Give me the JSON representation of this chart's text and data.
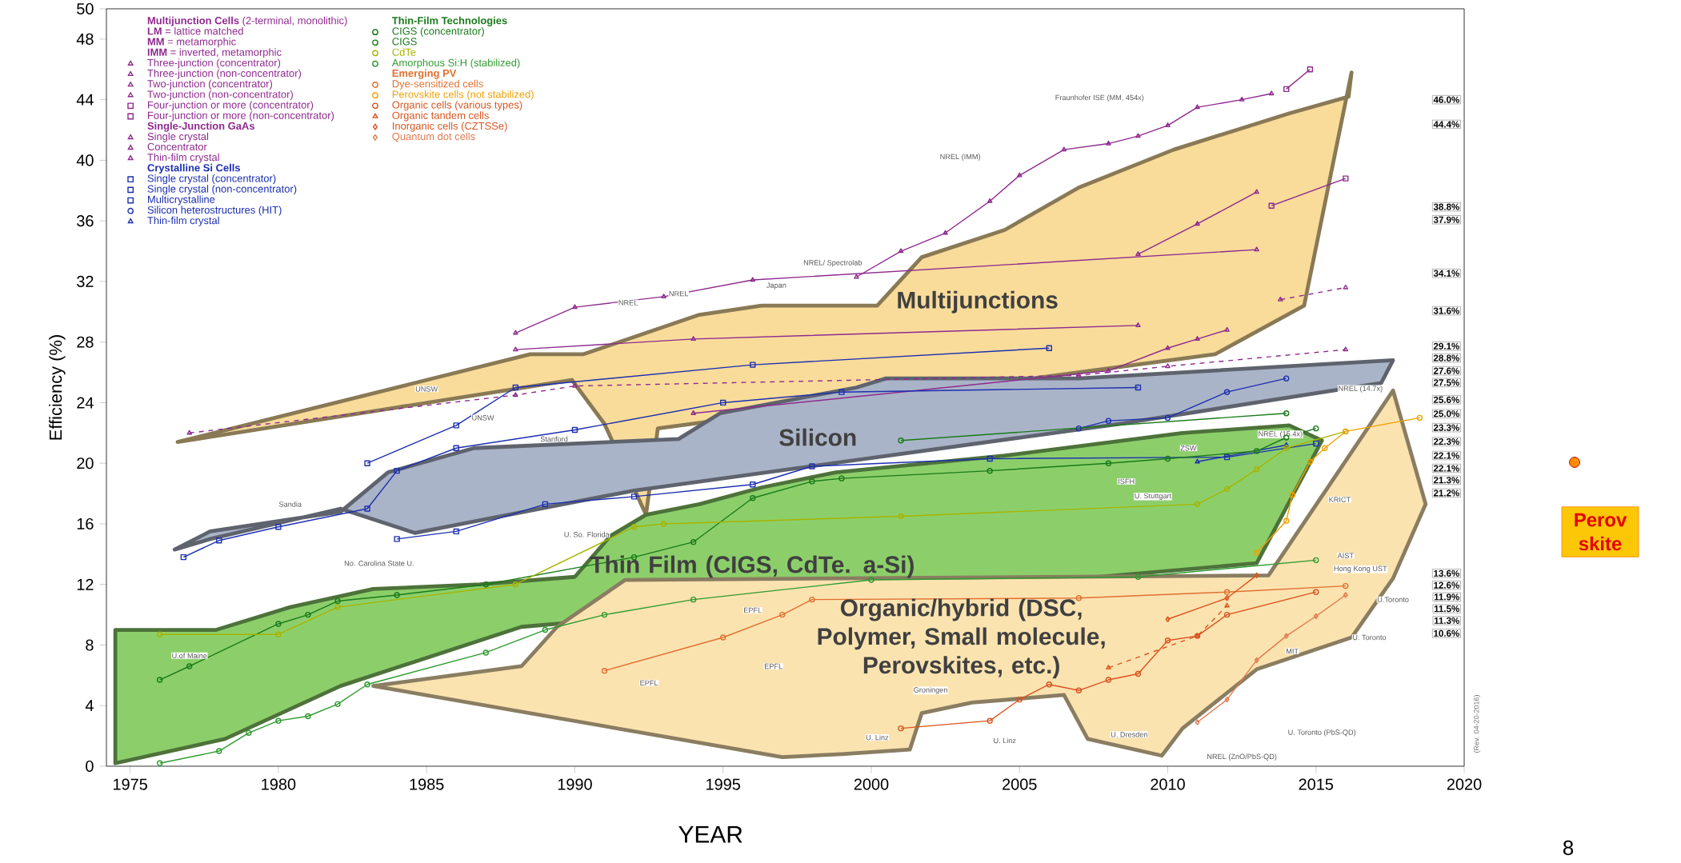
{
  "chart_data": {
    "type": "line",
    "xlabel": "YEAR",
    "ylabel": "Efficiency (%)",
    "xlim": [
      1974.2,
      2020
    ],
    "ylim": [
      0,
      50
    ],
    "xticks": [
      1975,
      1980,
      1985,
      1990,
      1995,
      2000,
      2005,
      2010,
      2015,
      2020
    ],
    "yticks": [
      0,
      4,
      8,
      12,
      16,
      20,
      24,
      28,
      32,
      36,
      40,
      44,
      48,
      50
    ],
    "legend": "top left",
    "series": [
      {
        "name": "Three-junction (concentrator)",
        "color": "#8e2a8e",
        "marker": "triangle",
        "x": [
          1999.5,
          2001,
          2002.5,
          2004,
          2005,
          2006.5,
          2008,
          2009,
          2010,
          2011,
          2012.5,
          2013.5
        ],
        "values": [
          32.3,
          34.0,
          35.2,
          37.3,
          39.0,
          40.7,
          41.1,
          41.6,
          42.3,
          43.5,
          44.0,
          44.4
        ]
      },
      {
        "name": "Three-junction (non-concentrator)",
        "color": "#8e2a8e",
        "marker": "triangle",
        "x": [
          2009,
          2011,
          2013
        ],
        "values": [
          33.8,
          35.8,
          37.9
        ]
      },
      {
        "name": "Two-junction (concentrator)",
        "color": "#8e2a8e",
        "marker": "triangle",
        "x": [
          1988,
          1990,
          1993,
          1996,
          2013
        ],
        "values": [
          28.6,
          30.3,
          31.0,
          32.1,
          34.1
        ]
      },
      {
        "name": "Two-junction (non-concentrator)",
        "color": "#8e2a8e",
        "marker": "triangle",
        "line_style": "dashed",
        "x": [
          2013.8,
          2016
        ],
        "values": [
          30.8,
          31.6
        ]
      },
      {
        "name": "Four-junction or more (concentrator)",
        "color": "#8e2a8e",
        "marker": "square",
        "x": [
          2014,
          2014.8
        ],
        "values": [
          44.7,
          46.0
        ]
      },
      {
        "name": "Four-junction or more (non-concentrator)",
        "color": "#8e2a8e",
        "marker": "square",
        "x": [
          2013.5,
          2016
        ],
        "values": [
          37.0,
          38.8
        ]
      },
      {
        "name": "Single crystal",
        "color": "#8e2a8e",
        "marker": "triangle",
        "line_style": "dashed",
        "x": [
          1977,
          1988,
          1990,
          2007,
          2010,
          2016
        ],
        "values": [
          22.0,
          24.5,
          25.1,
          25.8,
          26.4,
          27.5
        ]
      },
      {
        "name": "Concentrator",
        "color": "#8e2a8e",
        "marker": "triangle",
        "x": [
          1988,
          1994,
          2009
        ],
        "values": [
          27.5,
          28.2,
          29.1
        ]
      },
      {
        "name": "Thin-film crystal",
        "color": "#8e2a8e",
        "marker": "triangle",
        "x": [
          1994,
          2008,
          2010,
          2011,
          2012
        ],
        "values": [
          23.3,
          26.1,
          27.6,
          28.2,
          28.8
        ]
      },
      {
        "name": "Single crystal (concentrator)",
        "color": "#1c2fb0",
        "marker": "square",
        "x": [
          1983,
          1986,
          1988,
          1996,
          2006
        ],
        "values": [
          20.0,
          22.5,
          25.0,
          26.5,
          27.6
        ]
      },
      {
        "name": "Single crystal (non-concentrator)",
        "color": "#1c2fb0",
        "marker": "square",
        "x": [
          1976.8,
          1978,
          1980,
          1983,
          1984,
          1986,
          1990,
          1995,
          1999,
          2009
        ],
        "values": [
          13.8,
          14.9,
          15.8,
          17.0,
          19.5,
          21.0,
          22.2,
          24.0,
          24.7,
          25.0
        ]
      },
      {
        "name": "Multicrystalline",
        "color": "#1c2fb0",
        "marker": "square",
        "x": [
          1984,
          1986,
          1989,
          1992,
          1996,
          1998,
          2004,
          2012,
          2015
        ],
        "values": [
          15.0,
          15.5,
          17.3,
          17.8,
          18.6,
          19.8,
          20.3,
          20.4,
          21.3
        ]
      },
      {
        "name": "Silicon heterostructures (HIT)",
        "color": "#1c2fb0",
        "marker": "circle",
        "x": [
          2007,
          2008,
          2010,
          2012,
          2014
        ],
        "values": [
          22.3,
          22.8,
          23.0,
          24.7,
          25.6
        ]
      },
      {
        "name": "Thin-film crystal",
        "color": "#1c2fb0",
        "marker": "triangle",
        "x": [
          2011,
          2014
        ],
        "values": [
          20.1,
          21.2
        ]
      },
      {
        "name": "CIGS (concentrator)",
        "color": "#1a7a1a",
        "marker": "circle",
        "x": [
          2001,
          2014
        ],
        "values": [
          21.5,
          23.3
        ]
      },
      {
        "name": "CIGS",
        "color": "#1a7a1a",
        "marker": "circle",
        "x": [
          1976,
          1977,
          1980,
          1981,
          1982,
          1984,
          1987,
          1992,
          1994,
          1996,
          1998,
          1999,
          2004,
          2008,
          2010,
          2013,
          2014,
          2015
        ],
        "values": [
          5.7,
          6.6,
          9.4,
          10.0,
          10.9,
          11.3,
          12.0,
          13.8,
          14.8,
          17.7,
          18.8,
          19.0,
          19.5,
          20.0,
          20.3,
          20.8,
          21.7,
          22.3
        ]
      },
      {
        "name": "CdTe",
        "color": "#a8b400",
        "marker": "circle",
        "x": [
          1976,
          1980,
          1982,
          1988,
          1992,
          1993,
          2001,
          2011,
          2012,
          2013,
          2014,
          2016
        ],
        "values": [
          8.7,
          8.7,
          10.5,
          12.0,
          15.8,
          16.0,
          16.5,
          17.3,
          18.3,
          19.6,
          21.0,
          22.1
        ]
      },
      {
        "name": "Amorphous Si:H (stabilized)",
        "color": "#2f9a2f",
        "marker": "circle",
        "x": [
          1976,
          1978,
          1979,
          1980,
          1981,
          1982,
          1983,
          1987,
          1989,
          1991,
          1994,
          2000,
          2009,
          2015
        ],
        "values": [
          0.2,
          1.0,
          2.2,
          3.0,
          3.3,
          4.1,
          5.4,
          7.5,
          9.0,
          10.0,
          11.0,
          12.3,
          12.5,
          13.6
        ]
      },
      {
        "name": "Dye-sensitized cells",
        "color": "#e07030",
        "marker": "circle",
        "x": [
          1991,
          1995,
          1997,
          1998,
          2007,
          2012,
          2016
        ],
        "values": [
          6.3,
          8.5,
          10.0,
          11.0,
          11.1,
          11.5,
          11.9
        ]
      },
      {
        "name": "Perovskite cells (not stabilized)",
        "color": "#f0a000",
        "marker": "circle",
        "x": [
          2013,
          2014,
          2014.2,
          2014.8,
          2015.3,
          2016,
          2018.5
        ],
        "values": [
          14.1,
          16.2,
          17.9,
          20.1,
          21.0,
          22.1,
          23.0
        ]
      },
      {
        "name": "Organic cells (various types)",
        "color": "#d9541e",
        "marker": "circle",
        "x": [
          2001,
          2004,
          2005,
          2006,
          2007,
          2008,
          2009,
          2010,
          2011,
          2012,
          2015
        ],
        "values": [
          2.5,
          3.0,
          4.4,
          5.4,
          5.0,
          5.7,
          6.1,
          8.3,
          8.6,
          10.0,
          11.5
        ]
      },
      {
        "name": "Organic tandem cells",
        "color": "#d9541e",
        "marker": "triangle",
        "line_style": "dashed",
        "x": [
          2008,
          2011,
          2012
        ],
        "values": [
          6.5,
          8.6,
          10.6
        ]
      },
      {
        "name": "Inorganic cells (CZTSSe)",
        "color": "#d9541e",
        "marker": "diamond",
        "x": [
          2010,
          2012,
          2013
        ],
        "values": [
          9.7,
          11.1,
          12.6
        ]
      },
      {
        "name": "Quantum dot cells",
        "color": "#e07a50",
        "marker": "diamond",
        "x": [
          2011,
          2012,
          2013,
          2014,
          2015,
          2016
        ],
        "values": [
          2.9,
          4.4,
          7.0,
          8.6,
          9.9,
          11.3
        ]
      },
      {
        "name": "Multijunctions",
        "type": "area",
        "color": "#f9dc9a",
        "x": [
          1976.6,
          1988.5,
          1990.3,
          1994.2,
          1996.3,
          2000.2,
          2001.7,
          2004.5,
          2007.0,
          2010.2,
          2014.1,
          2016.1,
          2016.2,
          2014.6,
          2011.6,
          2006.5,
          1996.3,
          1992.8,
          1992.4,
          1991.0,
          1989.9
        ],
        "values": [
          21.4,
          27.2,
          27.2,
          29.8,
          30.4,
          30.4,
          33.6,
          35.4,
          38.2,
          40.7,
          43.1,
          44.2,
          45.8,
          30.4,
          27.2,
          null,
          null,
          22.3,
          16.6,
          22.6,
          25.5
        ]
      },
      {
        "name": "Silicon",
        "type": "area",
        "color": "#aab4c8",
        "x": [
          1976.5,
          1977.7,
          1982.1,
          1983.7,
          1986.6,
          1993.5,
          1994.9,
          1999.5,
          2000.5,
          2007.0,
          2017.6,
          2017.2,
          2008.4,
          2006.6,
          1992.0,
          1984.6,
          1982.1,
          1977.7
        ],
        "values": [
          14.3,
          15.5,
          16.8,
          19.4,
          21.0,
          21.6,
          23.3,
          25.0,
          25.6,
          25.6,
          26.8,
          25.3,
          22.6,
          null,
          18.2,
          15.4,
          17.0,
          15.0
        ]
      },
      {
        "name": "Thin Film (CIGS, CdTe. a-Si)",
        "type": "area",
        "color": "#8ccf6a",
        "x": [
          1974.5,
          1977.9,
          1980.4,
          1983.2,
          1986.8,
          1990.0,
          1991.2,
          1992.4,
          1994.2,
          1996.3,
          1998.8,
          2004.5,
          2010.5,
          2014.1,
          2015.2,
          2013.0,
          2010.9,
          1991.4,
          1988.2,
          1982.1,
          1978.2,
          1974.5
        ],
        "values": [
          9.0,
          9.0,
          10.5,
          11.7,
          12.0,
          12.5,
          15.2,
          16.6,
          17.3,
          18.4,
          19.4,
          20.5,
          22.0,
          22.5,
          21.5,
          13.4,
          null,
          null,
          9.2,
          5.3,
          1.8,
          0.2
        ]
      },
      {
        "name": "Organic/hybrid (DSC, Polymer, Small molecule, Perovskites, etc.)",
        "type": "area",
        "color": "#fbe3b0",
        "x": [
          1983.2,
          1988.2,
          1989.4,
          1991.7,
          2013.4,
          2015.5,
          2017.6,
          2018.7,
          2017.6,
          2016.2,
          2013.0,
          2010.5,
          2009.8,
          2007.3,
          2006.5,
          2003.4,
          2001.7,
          2001.3,
          1999.0,
          1997.0
        ],
        "values": [
          5.3,
          6.6,
          9.2,
          12.3,
          12.6,
          18.7,
          24.8,
          17.3,
          12.4,
          8.5,
          6.4,
          2.5,
          0.7,
          1.8,
          4.7,
          4.2,
          3.5,
          1.1,
          0.8,
          0.6
        ]
      }
    ],
    "annotations": [
      "**Multijunction Cells** (2-terminal, monolithic)",
      "**LM** = lattice matched",
      "**MM** = metamorphic",
      "**IMM** = inverted, metamorphic",
      "Single-Junction GaAs",
      "Crystalline Si Cells",
      "Thin-Film Technologies",
      "Emerging PV",
      "46.0%",
      "44.4%",
      "38.8%",
      "37.9%",
      "34.1%",
      "31.6%",
      "29.1%",
      "28.8%",
      "27.6%",
      "27.5%",
      "25.6%",
      "25.0%",
      "23.3%",
      "22.3%",
      "22.1%",
      "22.1%",
      "21.3%",
      "21.2%",
      "13.6%",
      "12.6%",
      "11.9%",
      "11.5%",
      "11.3%",
      "10.6%",
      "UNSW",
      "UNSW",
      "Stanford",
      "NREL",
      "NREL",
      "Japan",
      "NREL/ Spectrolab",
      "NREL (IMM)",
      "Fraunhofer ISE (MM, 454x)",
      "Sandia",
      "No. Carolina State U.",
      "U. So. Florida",
      "U.of Maine",
      "EPFL",
      "EPFL",
      "EPFL",
      "U. Linz",
      "U. Linz",
      "Groningen",
      "U. Dresden",
      "U. Toronto (PbS-QD)",
      "NREL (ZnO/PbS-QD)",
      "U. Toronto",
      "U.Toronto",
      "MIT",
      "KRICT",
      "AIST",
      "Hong Kong UST",
      "ZSW",
      "ISFH",
      "NREL (14.7x)",
      "NREL (15.4x)",
      "U. Stuttgart",
      "(Rev. 04-20-2016)",
      "Perov skite",
      "8"
    ]
  }
}
